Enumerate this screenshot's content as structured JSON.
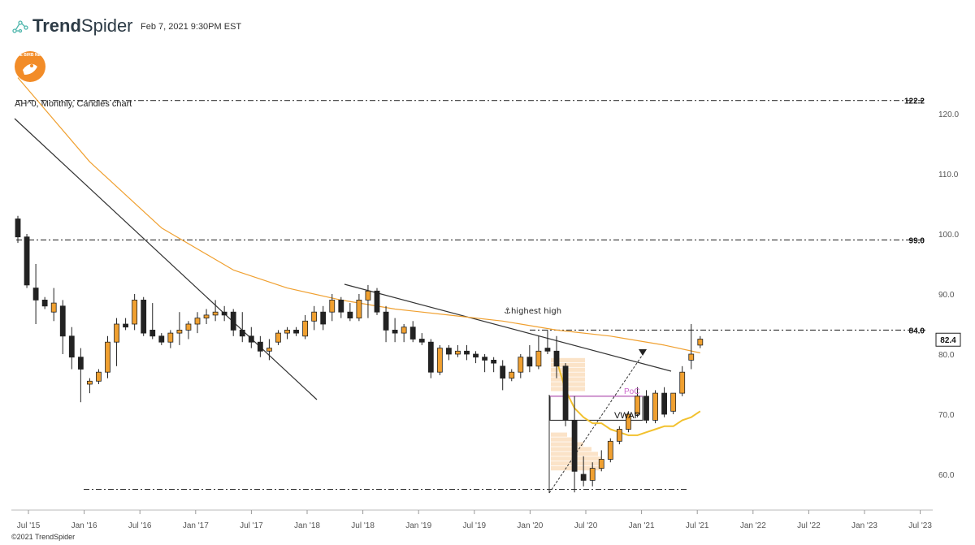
{
  "header": {
    "brand_bold": "Trend",
    "brand_light": "Spider",
    "timestamp": "Feb 7, 2021 9:30PM EST",
    "logo_icon": "network-nodes-icon",
    "badge_icon": "bird-nest-badge-icon",
    "badge_text": "THE BIRB NEST",
    "badge_color": "#f28c28"
  },
  "chart_title": "AH^0, Monthly, Candles chart",
  "footer": "©2021 TrendSpider",
  "chart_data": {
    "type": "candlestick",
    "ylim": [
      56,
      123
    ],
    "y_ticks": [
      60,
      70,
      80,
      90,
      100,
      110,
      120
    ],
    "y_tick_labels": [
      "60.0",
      "70.0",
      "80.0",
      "90.0",
      "100.0",
      "110.0",
      "120.0"
    ],
    "x_tick_labels": [
      "Jul '15",
      "Jan '16",
      "Jul '16",
      "Jan '17",
      "Jul '17",
      "Jan '18",
      "Jul '18",
      "Jan '19",
      "Jul '19",
      "Jan '20",
      "Jul '20",
      "Jan '21",
      "Jul '21",
      "Jan '22",
      "Jul '22",
      "Jan '23",
      "Jul '23"
    ],
    "level_labels": [
      {
        "value": 122.2,
        "text": "122.2"
      },
      {
        "value": 99.0,
        "text": "99.0"
      },
      {
        "value": 84.0,
        "text": "84.0"
      }
    ],
    "last_price": {
      "value": 82.4,
      "text": "82.4"
    },
    "annotations": {
      "highest_high": "⚓highest high",
      "poc": "PoC",
      "vwap": "VWAP"
    },
    "colors": {
      "up": "#f0a030",
      "down": "#222222",
      "ma": "#f0a030",
      "vwap": "#f2c12e",
      "poc": "#cc66cc",
      "volume_profile": "#fbe3c8",
      "grid_text": "#555555"
    },
    "candles": [
      [
        102.5,
        103.0,
        98.5,
        99.5
      ],
      [
        99.5,
        100.0,
        91.0,
        91.5
      ],
      [
        91.0,
        95.0,
        85.0,
        89.0
      ],
      [
        89.0,
        89.5,
        87.5,
        88.0
      ],
      [
        87.0,
        91.0,
        85.5,
        88.5
      ],
      [
        88.0,
        89.0,
        80.0,
        83.0
      ],
      [
        83.0,
        84.5,
        77.5,
        79.5
      ],
      [
        79.5,
        81.0,
        72.0,
        77.5
      ],
      [
        75.0,
        76.0,
        73.5,
        75.5
      ],
      [
        75.5,
        77.5,
        75.0,
        77.0
      ],
      [
        77.0,
        83.0,
        76.0,
        82.0
      ],
      [
        82.0,
        86.0,
        78.0,
        85.0
      ],
      [
        85.0,
        86.0,
        84.0,
        84.5
      ],
      [
        85.0,
        90.0,
        84.0,
        89.0
      ],
      [
        89.0,
        89.5,
        83.0,
        83.5
      ],
      [
        84.0,
        88.5,
        82.5,
        83.0
      ],
      [
        83.0,
        83.5,
        81.5,
        82.0
      ],
      [
        82.0,
        84.0,
        81.0,
        83.5
      ],
      [
        83.5,
        87.0,
        81.5,
        84.0
      ],
      [
        84.0,
        85.5,
        82.5,
        85.0
      ],
      [
        85.0,
        87.0,
        83.5,
        86.0
      ],
      [
        86.0,
        87.5,
        85.0,
        86.5
      ],
      [
        86.5,
        89.0,
        85.5,
        87.0
      ],
      [
        87.0,
        88.0,
        85.5,
        86.5
      ],
      [
        87.0,
        87.5,
        83.0,
        84.0
      ],
      [
        84.0,
        87.0,
        82.0,
        83.0
      ],
      [
        83.0,
        84.5,
        81.0,
        82.0
      ],
      [
        82.0,
        83.0,
        79.5,
        80.5
      ],
      [
        80.5,
        82.5,
        79.0,
        81.0
      ],
      [
        82.0,
        84.0,
        81.5,
        83.5
      ],
      [
        83.5,
        84.5,
        82.5,
        84.0
      ],
      [
        84.0,
        84.5,
        83.0,
        83.5
      ],
      [
        83.0,
        86.5,
        82.5,
        85.5
      ],
      [
        85.5,
        88.0,
        84.0,
        87.0
      ],
      [
        87.0,
        88.0,
        84.0,
        85.0
      ],
      [
        87.0,
        90.0,
        85.5,
        89.0
      ],
      [
        89.0,
        89.5,
        86.0,
        87.0
      ],
      [
        87.0,
        88.5,
        85.5,
        86.0
      ],
      [
        86.0,
        90.0,
        85.5,
        89.0
      ],
      [
        89.0,
        91.5,
        86.0,
        90.5
      ],
      [
        90.5,
        91.0,
        86.5,
        87.0
      ],
      [
        87.0,
        88.0,
        82.0,
        84.0
      ],
      [
        84.0,
        86.0,
        82.0,
        83.5
      ],
      [
        83.5,
        85.0,
        82.0,
        84.5
      ],
      [
        84.5,
        85.5,
        82.0,
        82.5
      ],
      [
        82.5,
        83.5,
        81.5,
        82.0
      ],
      [
        82.0,
        82.5,
        76.0,
        77.0
      ],
      [
        77.0,
        81.5,
        76.5,
        81.0
      ],
      [
        81.0,
        81.5,
        79.0,
        80.0
      ],
      [
        80.0,
        81.5,
        79.5,
        80.5
      ],
      [
        80.5,
        81.5,
        79.0,
        80.0
      ],
      [
        80.0,
        80.5,
        78.5,
        79.5
      ],
      [
        79.5,
        80.0,
        77.0,
        79.0
      ],
      [
        79.0,
        79.5,
        77.0,
        78.5
      ],
      [
        78.0,
        79.0,
        74.0,
        76.0
      ],
      [
        76.0,
        77.5,
        75.5,
        77.0
      ],
      [
        77.0,
        80.0,
        76.0,
        79.5
      ],
      [
        79.5,
        81.5,
        77.0,
        78.0
      ],
      [
        78.0,
        83.0,
        77.5,
        80.5
      ],
      [
        81.0,
        84.0,
        80.0,
        80.5
      ],
      [
        80.5,
        83.0,
        76.0,
        78.0
      ],
      [
        78.0,
        78.5,
        68.0,
        69.0
      ],
      [
        69.0,
        73.0,
        57.0,
        60.5
      ],
      [
        60.0,
        63.0,
        58.0,
        59.0
      ],
      [
        59.0,
        62.0,
        58.0,
        61.0
      ],
      [
        61.0,
        64.0,
        60.5,
        62.5
      ],
      [
        62.5,
        66.0,
        62.0,
        65.5
      ],
      [
        65.5,
        68.0,
        65.0,
        67.5
      ],
      [
        67.5,
        70.5,
        67.0,
        70.0
      ],
      [
        70.0,
        74.5,
        69.5,
        73.0
      ],
      [
        73.0,
        74.0,
        68.5,
        69.0
      ],
      [
        69.0,
        74.0,
        68.5,
        73.5
      ],
      [
        73.5,
        74.5,
        69.5,
        70.0
      ],
      [
        70.5,
        73.5,
        70.0,
        73.5
      ],
      [
        73.5,
        78.0,
        73.0,
        77.0
      ],
      [
        79.0,
        85.0,
        77.5,
        80.0
      ],
      [
        81.5,
        83.0,
        81.0,
        82.5
      ]
    ],
    "sma": [
      [
        0,
        126
      ],
      [
        8,
        112
      ],
      [
        16,
        101
      ],
      [
        24,
        94
      ],
      [
        30,
        91
      ],
      [
        36,
        89
      ],
      [
        42,
        87.5
      ],
      [
        48,
        86.5
      ],
      [
        54,
        85.5
      ],
      [
        60,
        84
      ],
      [
        66,
        83
      ],
      [
        72,
        81.5
      ],
      [
        76,
        80.2
      ]
    ],
    "vwap": [
      [
        60,
        79
      ],
      [
        61,
        74
      ],
      [
        62,
        71
      ],
      [
        63,
        69.5
      ],
      [
        64,
        68.5
      ],
      [
        65,
        68.5
      ],
      [
        66,
        67.5
      ],
      [
        67,
        67
      ],
      [
        68,
        66.5
      ],
      [
        69,
        66.5
      ],
      [
        70,
        67
      ],
      [
        71,
        67.5
      ],
      [
        72,
        68
      ],
      [
        73,
        68
      ],
      [
        74,
        69
      ],
      [
        75,
        69.5
      ],
      [
        76,
        70.5
      ]
    ],
    "volume_profile": [
      {
        "price": 79.0,
        "width": 42
      },
      {
        "price": 78.2,
        "width": 42
      },
      {
        "price": 77.4,
        "width": 42
      },
      {
        "price": 76.6,
        "width": 42
      },
      {
        "price": 75.8,
        "width": 42
      },
      {
        "price": 75.0,
        "width": 42
      },
      {
        "price": 74.2,
        "width": 42
      },
      {
        "price": 66.6,
        "width": 20
      },
      {
        "price": 65.8,
        "width": 30
      },
      {
        "price": 65.0,
        "width": 40
      },
      {
        "price": 64.2,
        "width": 50
      },
      {
        "price": 63.4,
        "width": 58
      },
      {
        "price": 62.6,
        "width": 62
      },
      {
        "price": 61.8,
        "width": 62
      },
      {
        "price": 61.0,
        "width": 62
      }
    ]
  }
}
